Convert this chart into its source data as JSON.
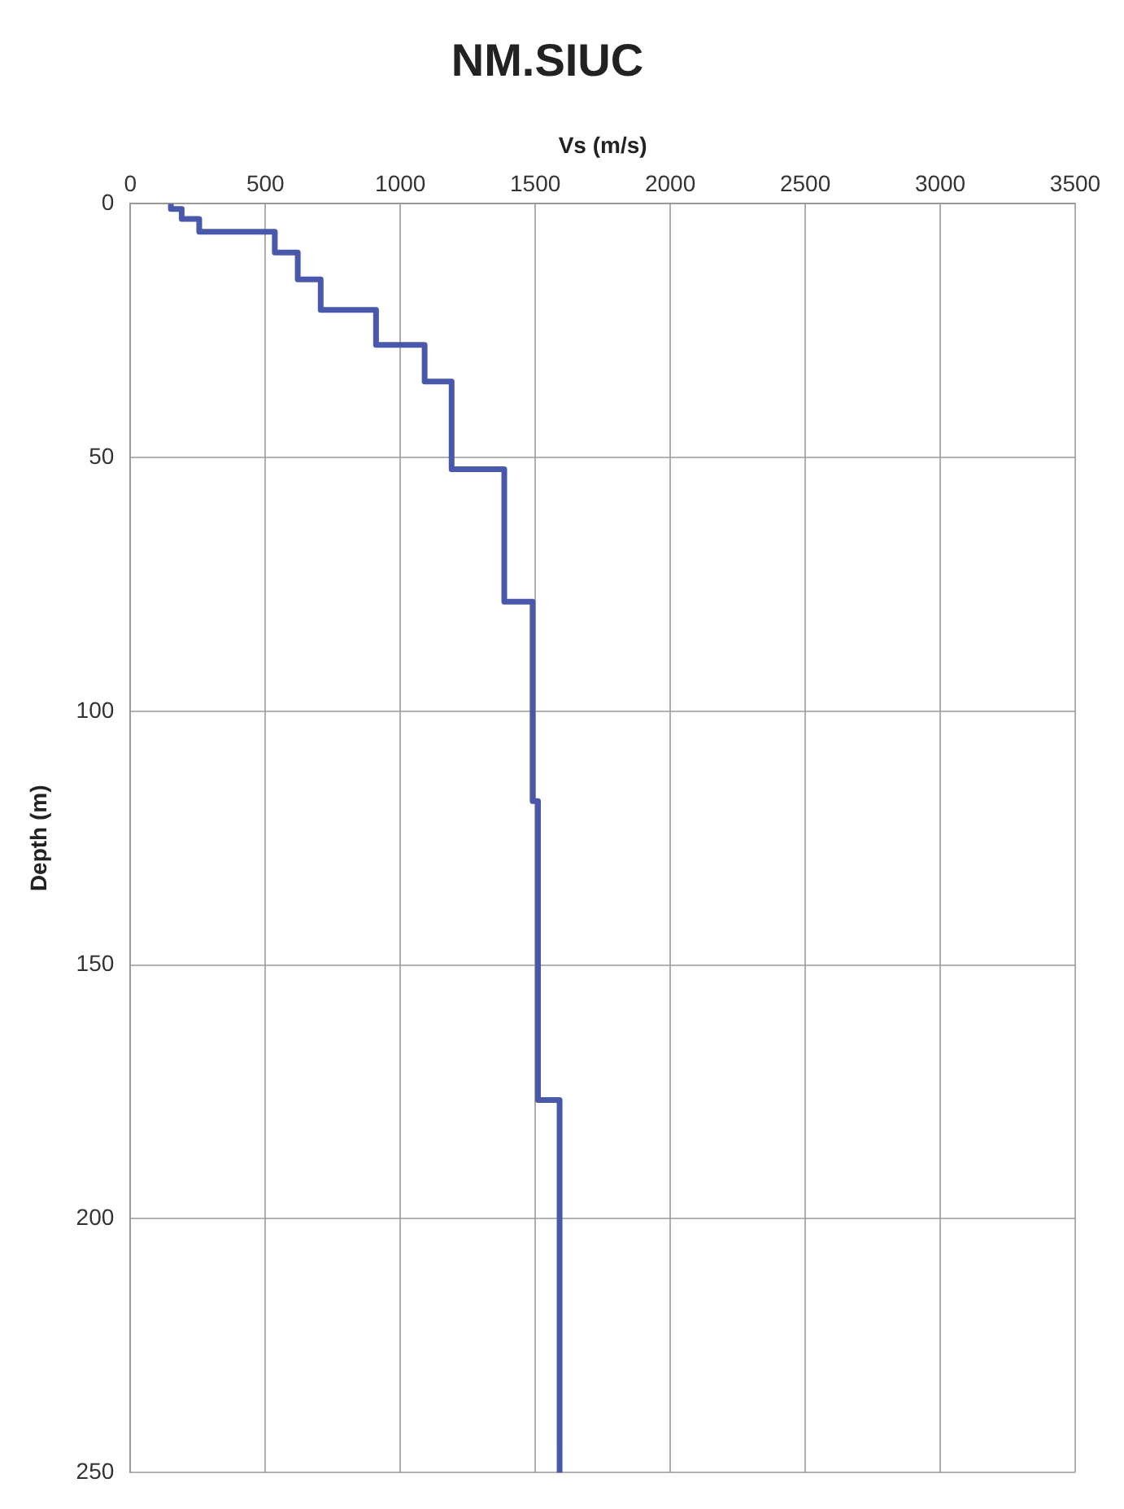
{
  "chart_data": {
    "type": "line",
    "title": "NM.SIUC",
    "xlabel": "Vs (m/s)",
    "ylabel": "Depth (m)",
    "x": [
      150,
      150,
      190,
      190,
      255,
      255,
      535,
      535,
      620,
      620,
      705,
      705,
      910,
      910,
      1090,
      1090,
      1190,
      1190,
      1385,
      1385,
      1490,
      1490,
      1510,
      1510,
      1590,
      1590
    ],
    "values": [
      0,
      1,
      1,
      3,
      3,
      5.5,
      5.5,
      9.6,
      9.6,
      14.9,
      14.9,
      20.9,
      20.9,
      27.8,
      27.8,
      35,
      35,
      52.3,
      52.3,
      78.4,
      78.4,
      117.7,
      117.7,
      176.6,
      176.6,
      250
    ],
    "color": "#4a58ac",
    "xlim": [
      0,
      3500
    ],
    "xticks": [
      0,
      500,
      1000,
      1500,
      2000,
      2500,
      3000,
      3500
    ],
    "ylim": [
      250,
      0
    ],
    "yticks": [
      0,
      50,
      100,
      150,
      200,
      250
    ],
    "grid": true,
    "legend": false,
    "marker": "none",
    "line_style": "solid"
  }
}
